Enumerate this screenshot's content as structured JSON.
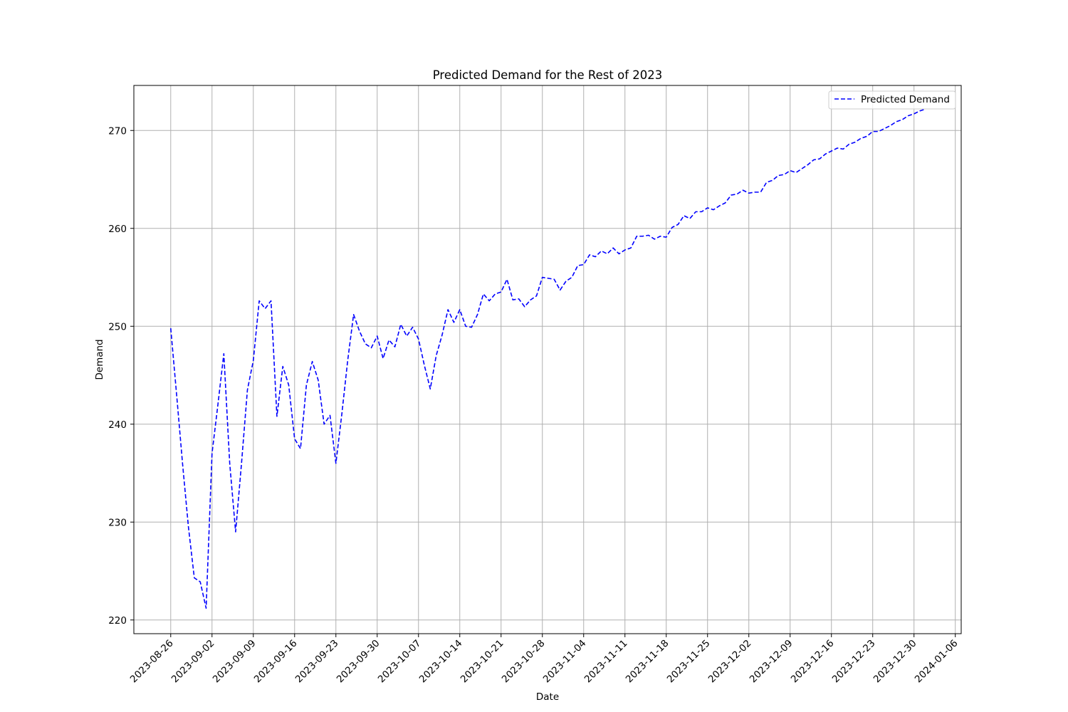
{
  "chart_data": {
    "type": "line",
    "title": "Predicted Demand for the Rest of 2023",
    "xlabel": "Date",
    "ylabel": "Demand",
    "x_tick_labels": [
      "2023-08-26",
      "2023-09-02",
      "2023-09-09",
      "2023-09-16",
      "2023-09-23",
      "2023-09-30",
      "2023-10-07",
      "2023-10-14",
      "2023-10-21",
      "2023-10-28",
      "2023-11-04",
      "2023-11-11",
      "2023-11-18",
      "2023-11-25",
      "2023-12-02",
      "2023-12-09",
      "2023-12-16",
      "2023-12-23",
      "2023-12-30",
      "2024-01-06"
    ],
    "y_ticks": [
      220,
      230,
      240,
      250,
      260,
      270
    ],
    "xlim": [
      "2023-08-19T18:00",
      "2024-01-07"
    ],
    "ylim": [
      218.6,
      274.6
    ],
    "grid": true,
    "legend": "top-right",
    "series": [
      {
        "name": "Predicted Demand",
        "color": "#0000ff",
        "line_style": "dashed",
        "start_date": "2023-08-26",
        "frequency": "daily",
        "values": [
          249.8,
          243,
          236,
          229.5,
          224.3,
          223.9,
          221.2,
          237,
          242,
          247.2,
          236,
          229,
          236,
          243.5,
          246.5,
          252.6,
          251.8,
          252.6,
          240.8,
          245.9,
          244,
          238.5,
          237.5,
          244,
          246.4,
          244.5,
          240,
          240.9,
          236,
          241,
          246.5,
          251.2,
          249.5,
          248.2,
          247.8,
          249,
          246.7,
          248.6,
          247.9,
          250.2,
          249,
          249.9,
          248.7,
          246,
          243.6,
          247,
          249.1,
          251.7,
          250.4,
          251.7,
          250,
          249.9,
          251.2,
          253.3,
          252.6,
          253.3,
          253.5,
          254.8,
          252.7,
          252.8,
          252,
          252.7,
          253.1,
          255,
          254.9,
          254.8,
          253.7,
          254.6,
          255,
          256.2,
          256.3,
          257.3,
          257.1,
          257.7,
          257.4,
          258,
          257.4,
          257.8,
          258,
          259.2,
          259.2,
          259.3,
          258.9,
          259.2,
          259.1,
          260.1,
          260.4,
          261.3,
          261,
          261.7,
          261.7,
          262.1,
          261.9,
          262.3,
          262.6,
          263.4,
          263.5,
          263.9,
          263.6,
          263.7,
          263.7,
          264.7,
          264.9,
          265.4,
          265.5,
          265.9,
          265.7,
          266.1,
          266.5,
          267,
          267.1,
          267.6,
          267.9,
          268.2,
          268.1,
          268.6,
          268.8,
          269.2,
          269.4,
          269.9,
          269.9,
          270.2,
          270.5,
          270.9,
          271.1,
          271.5,
          271.7,
          272,
          272.2
        ]
      }
    ]
  }
}
